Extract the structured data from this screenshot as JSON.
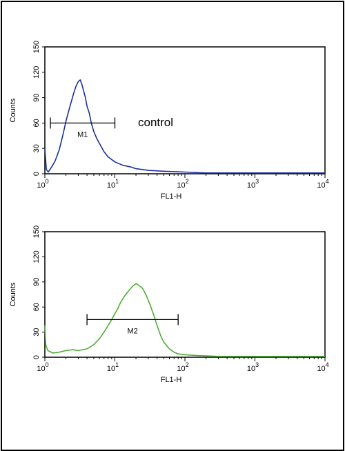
{
  "chart_data": [
    {
      "type": "line",
      "xlabel": "FL1-H",
      "ylabel": "Counts",
      "x_scale": "log",
      "xlim": [
        1,
        10000
      ],
      "ylim": [
        0,
        150
      ],
      "yticks": [
        "0",
        "30",
        "60",
        "90",
        "120",
        "150"
      ],
      "xticks": [
        {
          "base": "10",
          "exp": "0"
        },
        {
          "base": "10",
          "exp": "1"
        },
        {
          "base": "10",
          "exp": "2"
        },
        {
          "base": "10",
          "exp": "3"
        },
        {
          "base": "10",
          "exp": "4"
        }
      ],
      "annotation": "control",
      "series": [
        {
          "color": "#1a2fa0",
          "x": [
            1,
            1.05,
            1.12,
            1.25,
            1.4,
            1.6,
            1.8,
            2.0,
            2.2,
            2.4,
            2.6,
            2.8,
            3.0,
            3.2,
            3.4,
            3.6,
            3.8,
            4.0,
            4.3,
            4.6,
            5.0,
            5.5,
            6.0,
            7.0,
            8.0,
            10,
            13,
            17,
            20,
            30,
            50,
            100,
            200,
            500,
            1000,
            2000,
            5000,
            10000
          ],
          "values": [
            30,
            5,
            2,
            8,
            15,
            28,
            45,
            62,
            75,
            86,
            96,
            104,
            109,
            111,
            105,
            97,
            90,
            80,
            72,
            60,
            50,
            42,
            36,
            26,
            20,
            14,
            10,
            8,
            6,
            4,
            3,
            2,
            1,
            1,
            1,
            1,
            1,
            1
          ]
        }
      ],
      "marker": {
        "label": "M1",
        "x_start": 1.2,
        "x_end": 10,
        "y": 60
      }
    },
    {
      "type": "line",
      "xlabel": "FL1-H",
      "ylabel": "Counts",
      "x_scale": "log",
      "xlim": [
        1,
        10000
      ],
      "ylim": [
        0,
        150
      ],
      "yticks": [
        "0",
        "30",
        "60",
        "90",
        "120",
        "150"
      ],
      "xticks": [
        {
          "base": "10",
          "exp": "0"
        },
        {
          "base": "10",
          "exp": "1"
        },
        {
          "base": "10",
          "exp": "2"
        },
        {
          "base": "10",
          "exp": "3"
        },
        {
          "base": "10",
          "exp": "4"
        }
      ],
      "series": [
        {
          "color": "#4caf32",
          "x": [
            1,
            1.03,
            1.1,
            1.3,
            1.6,
            2.0,
            2.5,
            3.0,
            4.0,
            5.0,
            6.0,
            7.0,
            8.0,
            9.0,
            10,
            11,
            12,
            13,
            14,
            16,
            18,
            20,
            22,
            25,
            28,
            32,
            36,
            40,
            45,
            50,
            60,
            70,
            80,
            100,
            150,
            300,
            1000,
            3000,
            10000
          ],
          "values": [
            38,
            15,
            8,
            5,
            6,
            8,
            9,
            8,
            10,
            15,
            22,
            30,
            38,
            45,
            52,
            58,
            65,
            70,
            74,
            80,
            85,
            88,
            86,
            82,
            74,
            62,
            50,
            38,
            26,
            18,
            10,
            6,
            4,
            3,
            2,
            1,
            1,
            1,
            1
          ]
        }
      ],
      "marker": {
        "label": "M2",
        "x_start": 4,
        "x_end": 80,
        "y": 45
      }
    }
  ]
}
